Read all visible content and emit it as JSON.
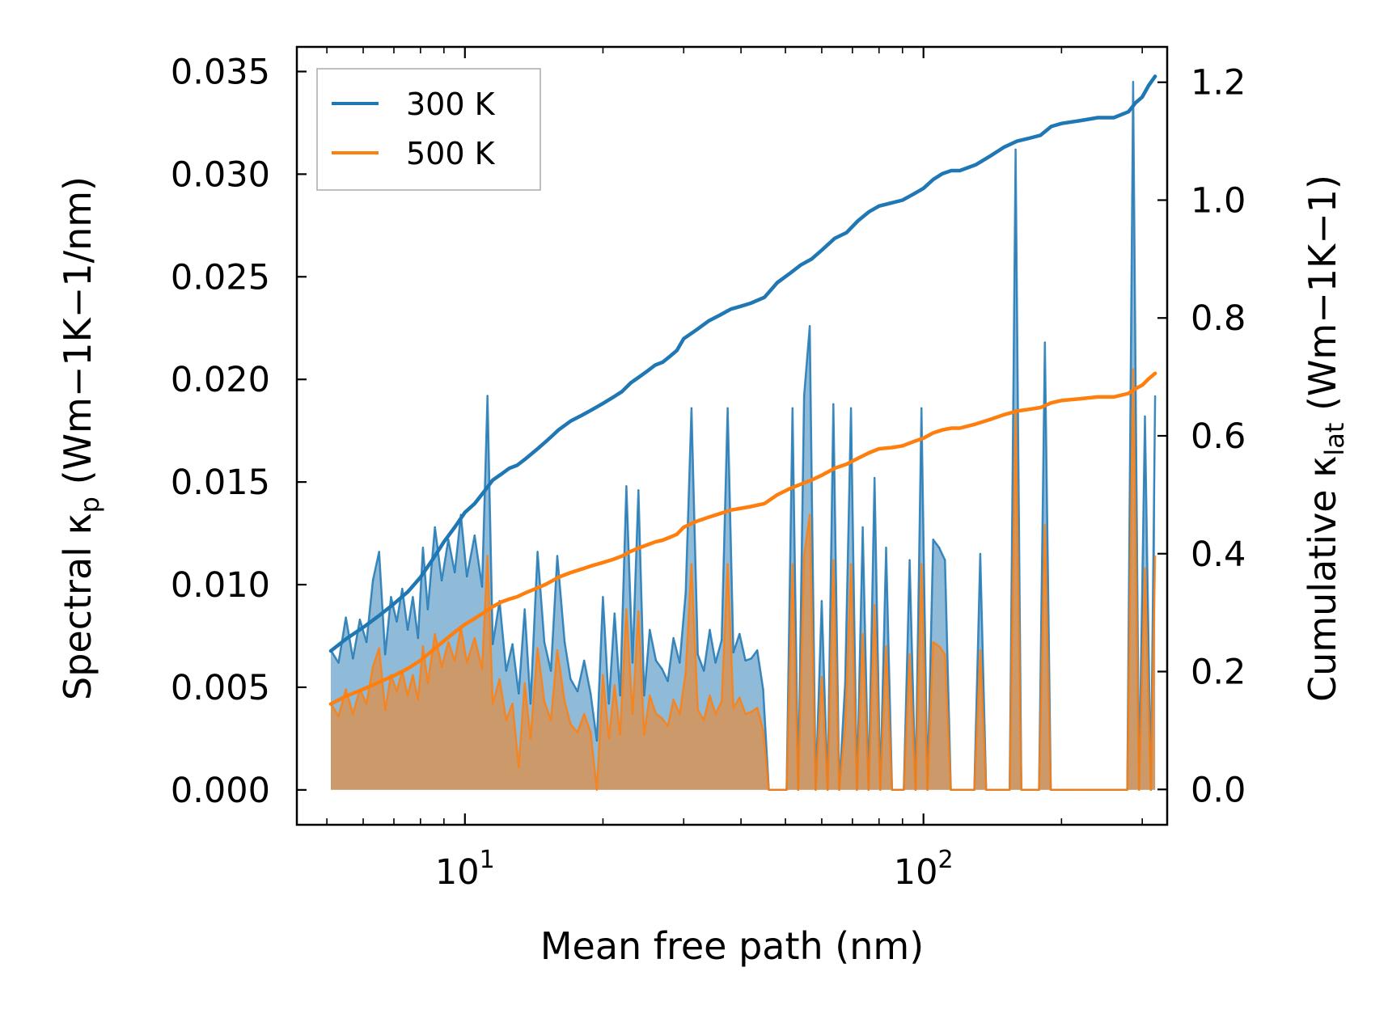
{
  "chart_data": {
    "type": "line",
    "title": "",
    "xlabel": "Mean free path (nm)",
    "ylabel_left": {
      "main": "Spectral κ",
      "sub": "p",
      "units": " (Wm−1K−1/nm)"
    },
    "ylabel_right": {
      "main": "Cumulative κ",
      "sub": "lat",
      "units": " (Wm−1K−1)"
    },
    "x_scale": "log",
    "xlim": [
      4.3,
      340
    ],
    "ylim_left": [
      -0.0017,
      0.0362
    ],
    "ylim_right": [
      -0.06,
      1.26
    ],
    "x_tick_labels": [
      {
        "value": 10,
        "base": "10",
        "exp": "1"
      },
      {
        "value": 100,
        "base": "10",
        "exp": "2"
      }
    ],
    "y_left_ticks": [
      0.0,
      0.005,
      0.01,
      0.015,
      0.02,
      0.025,
      0.03,
      0.035
    ],
    "y_left_tick_labels": [
      "0.000",
      "0.005",
      "0.010",
      "0.015",
      "0.020",
      "0.025",
      "0.030",
      "0.035"
    ],
    "y_right_ticks": [
      0.0,
      0.2,
      0.4,
      0.6,
      0.8,
      1.0,
      1.2
    ],
    "y_right_tick_labels": [
      "0.0",
      "0.2",
      "0.4",
      "0.6",
      "0.8",
      "1.0",
      "1.2"
    ],
    "legend": {
      "position": "upper-left",
      "entries": [
        {
          "label": "300 K",
          "color": "#1f77b4"
        },
        {
          "label": "500 K",
          "color": "#ff7f0e"
        }
      ]
    },
    "series": [
      {
        "name": "300 K",
        "color": "#1f77b4",
        "spectral": {
          "x": [
            5.1,
            5.3,
            5.5,
            5.7,
            5.9,
            6.1,
            6.3,
            6.5,
            6.7,
            6.9,
            7.1,
            7.3,
            7.5,
            7.7,
            7.9,
            8.1,
            8.3,
            8.6,
            8.9,
            9.2,
            9.5,
            9.8,
            10.1,
            10.5,
            10.9,
            11.2,
            11.5,
            11.9,
            12.3,
            12.7,
            13.1,
            13.5,
            13.9,
            14.4,
            14.9,
            15.4,
            15.9,
            16.5,
            17.0,
            17.6,
            18.2,
            18.8,
            19.4,
            20.0,
            20.6,
            21.2,
            21.8,
            22.5,
            23.2,
            23.9,
            24.6,
            25.3,
            26.1,
            26.9,
            27.7,
            28.5,
            29.4,
            30.3,
            31.2,
            32.2,
            33.2,
            34.2,
            35.2,
            36.3,
            37.4,
            38.5,
            39.7,
            40.9,
            42.1,
            43.4,
            44.7,
            46.0,
            47.4,
            48.8,
            50.3,
            51.8,
            53.3,
            54.9,
            56.5,
            58.2,
            60.0,
            61.8,
            63.6,
            65.5,
            67.5,
            69.5,
            71.6,
            73.7,
            75.9,
            78.2,
            80.5,
            82.9,
            85.4,
            88.0,
            90.6,
            93.3,
            96.1,
            99.0,
            102.0,
            105.0,
            108.2,
            111.4,
            114.7,
            118.2,
            121.7,
            125.4,
            129.1,
            133.0,
            137.0,
            141.1,
            145.3,
            149.7,
            154.2,
            158.8,
            163.5,
            168.4,
            173.5,
            178.7,
            184.0,
            189.5,
            195.2,
            201.1,
            207.1,
            213.3,
            219.7,
            226.3,
            233.1,
            240.1,
            247.3,
            254.7,
            262.3,
            270.2,
            278.3,
            286.6,
            295.2,
            304.1,
            313.2,
            320.0
          ],
          "values": [
            0.0068,
            0.0062,
            0.0084,
            0.0064,
            0.0083,
            0.0072,
            0.0102,
            0.0116,
            0.0066,
            0.0094,
            0.0082,
            0.0098,
            0.0078,
            0.0094,
            0.0074,
            0.0118,
            0.0088,
            0.0128,
            0.0102,
            0.0122,
            0.0106,
            0.0134,
            0.0104,
            0.0124,
            0.0099,
            0.0192,
            0.0071,
            0.0092,
            0.0058,
            0.0071,
            0.0047,
            0.0088,
            0.0042,
            0.0116,
            0.0072,
            0.0058,
            0.0114,
            0.0072,
            0.0054,
            0.0048,
            0.0063,
            0.0047,
            0.0024,
            0.0094,
            0.0042,
            0.0086,
            0.0046,
            0.0148,
            0.0062,
            0.0146,
            0.0046,
            0.0078,
            0.0063,
            0.0059,
            0.0053,
            0.0074,
            0.0062,
            0.0096,
            0.0186,
            0.0066,
            0.0058,
            0.0078,
            0.0062,
            0.0073,
            0.0186,
            0.0067,
            0.0076,
            0.0063,
            0.0064,
            0.0068,
            0.0049,
            0.0,
            0.0,
            0.0,
            0.0,
            0.0186,
            0.0,
            0.0192,
            0.0226,
            0.0,
            0.0092,
            0.0,
            0.0188,
            0.0,
            0.0052,
            0.0186,
            0.0,
            0.0128,
            0.0,
            0.0152,
            0.0,
            0.0118,
            0.0,
            0.0,
            0.0,
            0.0112,
            0.0,
            0.0186,
            0.0,
            0.0122,
            0.0118,
            0.0112,
            0.0,
            0.0,
            0.0,
            0.0,
            0.0,
            0.0115,
            0.0,
            0.0,
            0.0,
            0.0,
            0.0,
            0.0312,
            0.0,
            0.0,
            0.0,
            0.0,
            0.0218,
            0.0,
            0.0,
            0.0,
            0.0,
            0.0,
            0.0,
            0.0,
            0.0,
            0.0,
            0.0,
            0.0,
            0.0,
            0.0,
            0.0,
            0.0345,
            0.0,
            0.0182,
            0.0,
            0.0192
          ]
        },
        "cumulative": {
          "x": [
            5.1,
            5.5,
            6.0,
            6.5,
            7.0,
            7.5,
            8.0,
            8.5,
            9.0,
            9.5,
            10.0,
            10.5,
            11.0,
            11.5,
            12.0,
            12.5,
            13.0,
            13.5,
            14.0,
            14.5,
            15.0,
            15.5,
            16.0,
            17.0,
            18.0,
            19.0,
            20.0,
            21.0,
            22.0,
            23.0,
            24.0,
            25.0,
            26.0,
            27.0,
            28.0,
            29.0,
            30.0,
            32.0,
            34.0,
            36.0,
            38.0,
            40.0,
            42.0,
            45.0,
            48.0,
            51.0,
            54.0,
            57.0,
            60.0,
            64.0,
            68.0,
            72.0,
            76.0,
            80.0,
            85.0,
            90.0,
            95.0,
            100.0,
            105.0,
            110.0,
            115.0,
            120.0,
            130.0,
            140.0,
            150.0,
            160.0,
            170.0,
            180.0,
            190.0,
            200.0,
            220.0,
            240.0,
            260.0,
            280.0,
            290.0,
            300.0,
            310.0,
            320.0
          ],
          "values": [
            0.235,
            0.255,
            0.275,
            0.295,
            0.315,
            0.335,
            0.36,
            0.39,
            0.42,
            0.445,
            0.47,
            0.485,
            0.505,
            0.525,
            0.535,
            0.545,
            0.55,
            0.56,
            0.57,
            0.58,
            0.59,
            0.6,
            0.61,
            0.625,
            0.635,
            0.645,
            0.655,
            0.665,
            0.675,
            0.69,
            0.7,
            0.71,
            0.72,
            0.725,
            0.735,
            0.745,
            0.765,
            0.78,
            0.795,
            0.805,
            0.815,
            0.82,
            0.825,
            0.835,
            0.86,
            0.875,
            0.89,
            0.9,
            0.915,
            0.935,
            0.945,
            0.965,
            0.98,
            0.99,
            0.995,
            1.0,
            1.01,
            1.02,
            1.035,
            1.045,
            1.05,
            1.05,
            1.06,
            1.075,
            1.09,
            1.1,
            1.105,
            1.11,
            1.125,
            1.13,
            1.135,
            1.14,
            1.14,
            1.15,
            1.165,
            1.175,
            1.195,
            1.21
          ]
        }
      },
      {
        "name": "500 K",
        "color": "#ff7f0e",
        "spectral": {
          "x": [
            5.1,
            5.3,
            5.5,
            5.7,
            5.9,
            6.1,
            6.3,
            6.5,
            6.7,
            6.9,
            7.1,
            7.3,
            7.5,
            7.7,
            7.9,
            8.1,
            8.3,
            8.6,
            8.9,
            9.2,
            9.5,
            9.8,
            10.1,
            10.5,
            10.9,
            11.2,
            11.5,
            11.9,
            12.3,
            12.7,
            13.1,
            13.5,
            13.9,
            14.4,
            14.9,
            15.4,
            15.9,
            16.5,
            17.0,
            17.6,
            18.2,
            18.8,
            19.4,
            20.0,
            20.6,
            21.2,
            21.8,
            22.5,
            23.2,
            23.9,
            24.6,
            25.3,
            26.1,
            26.9,
            27.7,
            28.5,
            29.4,
            30.3,
            31.2,
            32.2,
            33.2,
            34.2,
            35.2,
            36.3,
            37.4,
            38.5,
            39.7,
            40.9,
            42.1,
            43.4,
            44.7,
            46.0,
            47.4,
            48.8,
            50.3,
            51.8,
            53.3,
            54.9,
            56.5,
            58.2,
            60.0,
            61.8,
            63.6,
            65.5,
            67.5,
            69.5,
            71.6,
            73.7,
            75.9,
            78.2,
            80.5,
            82.9,
            85.4,
            88.0,
            90.6,
            93.3,
            96.1,
            99.0,
            102.0,
            105.0,
            108.2,
            111.4,
            114.7,
            118.2,
            121.7,
            125.4,
            129.1,
            133.0,
            137.0,
            141.1,
            145.3,
            149.7,
            154.2,
            158.8,
            163.5,
            168.4,
            173.5,
            178.7,
            184.0,
            189.5,
            195.2,
            201.1,
            207.1,
            213.3,
            219.7,
            226.3,
            233.1,
            240.1,
            247.3,
            254.7,
            262.3,
            270.2,
            278.3,
            286.6,
            295.2,
            304.1,
            313.2,
            320.0
          ],
          "values": [
            0.0042,
            0.0036,
            0.0049,
            0.0037,
            0.0049,
            0.0042,
            0.006,
            0.0069,
            0.0039,
            0.0056,
            0.0048,
            0.0058,
            0.0046,
            0.0056,
            0.0044,
            0.007,
            0.0052,
            0.0076,
            0.006,
            0.0072,
            0.0063,
            0.0079,
            0.0062,
            0.0074,
            0.0059,
            0.0114,
            0.0042,
            0.0054,
            0.0034,
            0.0042,
            0.0011,
            0.0052,
            0.0025,
            0.0069,
            0.0043,
            0.0034,
            0.0068,
            0.0043,
            0.0032,
            0.0028,
            0.0037,
            0.0028,
            0.0,
            0.0056,
            0.0025,
            0.0051,
            0.0027,
            0.0088,
            0.0037,
            0.0087,
            0.0027,
            0.0046,
            0.0037,
            0.0035,
            0.0031,
            0.0044,
            0.0037,
            0.0057,
            0.011,
            0.0039,
            0.0034,
            0.0046,
            0.0037,
            0.0043,
            0.011,
            0.004,
            0.0045,
            0.0037,
            0.0038,
            0.004,
            0.0029,
            0.0,
            0.0,
            0.0,
            0.0,
            0.011,
            0.0,
            0.0114,
            0.0134,
            0.0,
            0.0055,
            0.0,
            0.0112,
            0.0,
            0.0031,
            0.011,
            0.0,
            0.0076,
            0.0,
            0.009,
            0.0,
            0.007,
            0.0,
            0.0,
            0.0,
            0.0066,
            0.0,
            0.011,
            0.0,
            0.0072,
            0.007,
            0.0066,
            0.0,
            0.0,
            0.0,
            0.0,
            0.0,
            0.0068,
            0.0,
            0.0,
            0.0,
            0.0,
            0.0,
            0.0185,
            0.0,
            0.0,
            0.0,
            0.0,
            0.0129,
            0.0,
            0.0,
            0.0,
            0.0,
            0.0,
            0.0,
            0.0,
            0.0,
            0.0,
            0.0,
            0.0,
            0.0,
            0.0,
            0.0,
            0.0205,
            0.0,
            0.0108,
            0.0,
            0.0114
          ]
        },
        "cumulative": {
          "x": [
            5.1,
            5.5,
            6.0,
            6.5,
            7.0,
            7.5,
            8.0,
            8.5,
            9.0,
            9.5,
            10.0,
            10.5,
            11.0,
            11.5,
            12.0,
            12.5,
            13.0,
            13.5,
            14.0,
            14.5,
            15.0,
            15.5,
            16.0,
            17.0,
            18.0,
            19.0,
            20.0,
            21.0,
            22.0,
            23.0,
            24.0,
            25.0,
            26.0,
            27.0,
            28.0,
            29.0,
            30.0,
            32.0,
            34.0,
            36.0,
            38.0,
            40.0,
            42.0,
            45.0,
            48.0,
            51.0,
            54.0,
            57.0,
            60.0,
            64.0,
            68.0,
            72.0,
            76.0,
            80.0,
            85.0,
            90.0,
            95.0,
            100.0,
            105.0,
            110.0,
            115.0,
            120.0,
            130.0,
            140.0,
            150.0,
            160.0,
            170.0,
            180.0,
            190.0,
            200.0,
            220.0,
            240.0,
            260.0,
            280.0,
            290.0,
            300.0,
            310.0,
            320.0
          ],
          "values": [
            0.145,
            0.158,
            0.17,
            0.182,
            0.193,
            0.205,
            0.219,
            0.236,
            0.252,
            0.267,
            0.28,
            0.29,
            0.3,
            0.31,
            0.318,
            0.323,
            0.327,
            0.333,
            0.338,
            0.343,
            0.348,
            0.354,
            0.36,
            0.368,
            0.374,
            0.38,
            0.385,
            0.39,
            0.396,
            0.404,
            0.41,
            0.415,
            0.42,
            0.423,
            0.428,
            0.433,
            0.445,
            0.455,
            0.462,
            0.468,
            0.474,
            0.477,
            0.48,
            0.485,
            0.5,
            0.51,
            0.518,
            0.525,
            0.533,
            0.545,
            0.552,
            0.562,
            0.571,
            0.578,
            0.58,
            0.583,
            0.59,
            0.596,
            0.605,
            0.61,
            0.613,
            0.613,
            0.62,
            0.628,
            0.636,
            0.642,
            0.645,
            0.648,
            0.656,
            0.66,
            0.663,
            0.666,
            0.666,
            0.672,
            0.68,
            0.686,
            0.697,
            0.706
          ]
        }
      }
    ]
  }
}
